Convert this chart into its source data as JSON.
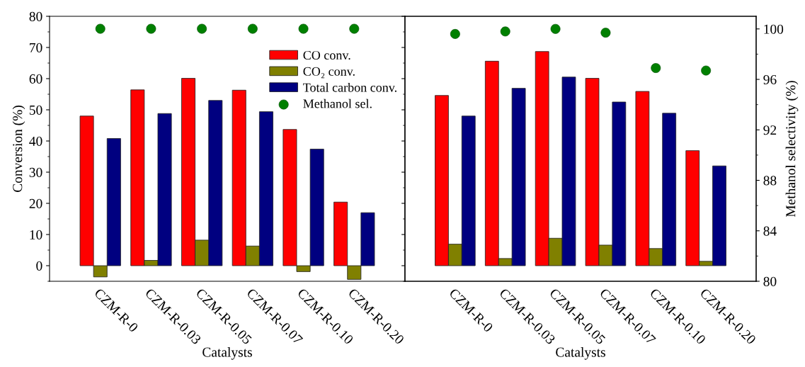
{
  "chart_data": [
    {
      "type": "bar",
      "categories": [
        "CZM-R-0",
        "CZM-R-0.03",
        "CZM-R-0.05",
        "CZM-R-0.07",
        "CZM-R-0.10",
        "CZM-R-0.20"
      ],
      "xlabel": "Catalysts",
      "ylabel": "Conversion (%)",
      "ylim": [
        -5,
        80
      ],
      "yticks": [
        0,
        10,
        20,
        30,
        40,
        50,
        60,
        70,
        80
      ],
      "legend": "top right",
      "grid": false,
      "series": [
        {
          "name": "CO conv.",
          "color": "#ff0000",
          "values": [
            48.0,
            56.4,
            60.1,
            56.3,
            43.7,
            20.4
          ]
        },
        {
          "name": "CO₂ conv.",
          "color": "#808000",
          "values": [
            -3.6,
            1.7,
            8.2,
            6.3,
            -1.9,
            -4.4
          ]
        },
        {
          "name": "Total carbon conv.",
          "color": "#000080",
          "values": [
            40.8,
            48.8,
            53.0,
            49.4,
            37.4,
            17.0
          ]
        },
        {
          "name": "Methanol sel.",
          "type": "scatter",
          "marker": "circle",
          "color": "#008000",
          "values": [
            76.0,
            76.0,
            76.0,
            76.0,
            76.0,
            76.0
          ]
        }
      ]
    },
    {
      "type": "bar",
      "categories": [
        "CZM-R-0",
        "CZM-R-0.03",
        "CZM-R-0.05",
        "CZM-R-0.07",
        "CZM-R-0.10",
        "CZM-R-0.20"
      ],
      "xlabel": "Catalysts",
      "y2label": "Methanol selectivity (%)",
      "ylim": [
        -5,
        80
      ],
      "y2lim": [
        80,
        101
      ],
      "y2ticks": [
        80,
        84,
        88,
        92,
        96,
        100
      ],
      "legend": false,
      "grid": false,
      "series": [
        {
          "color": "#ff0000",
          "values": [
            54.6,
            65.6,
            68.7,
            60.1,
            55.9,
            36.9
          ]
        },
        {
          "color": "#808000",
          "values": [
            6.9,
            2.3,
            8.8,
            6.6,
            5.5,
            1.4
          ]
        },
        {
          "color": "#000080",
          "values": [
            48.0,
            56.9,
            60.5,
            52.5,
            48.9,
            32.0
          ]
        },
        {
          "type": "scatter",
          "marker": "circle",
          "axis": "y2",
          "color": "#008000",
          "values": [
            99.6,
            99.8,
            100.0,
            99.7,
            96.9,
            96.7
          ]
        }
      ]
    }
  ]
}
